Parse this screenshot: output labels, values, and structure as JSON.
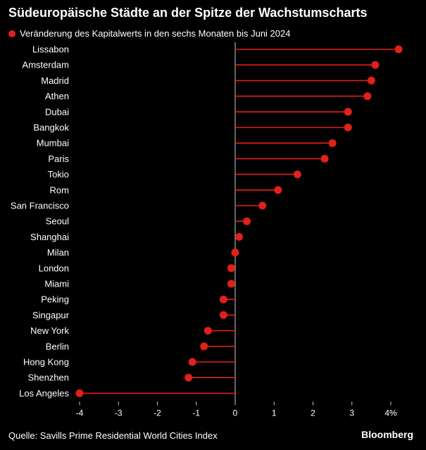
{
  "colors": {
    "background": "#000000",
    "marker": "#e0201b",
    "text": "#ffffff",
    "axis": "#cccccc"
  },
  "header": {
    "title": "Südeuropäische Städte an der Spitze der Wachstumscharts"
  },
  "footer": {
    "source": "Quelle: Savills Prime Residential World Cities Index",
    "brand": "Bloomberg"
  },
  "chart_data": {
    "type": "lollipop",
    "orientation": "horizontal",
    "title": "Südeuropäische Städte an der Spitze der Wachstumscharts",
    "series": [
      {
        "name": "Veränderung des Kapitalwerts in den sechs Monaten bis Juni 2024",
        "color": "#e0201b"
      }
    ],
    "categories": [
      "Lissabon",
      "Amsterdam",
      "Madrid",
      "Athen",
      "Dubai",
      "Bangkok",
      "Mumbai",
      "Paris",
      "Tokio",
      "Rom",
      "San Francisco",
      "Seoul",
      "Shanghai",
      "Milan",
      "London",
      "Miami",
      "Peking",
      "Singapur",
      "New York",
      "Berlin",
      "Hong Kong",
      "Shenzhen",
      "Los Angeles"
    ],
    "values": [
      4.2,
      3.6,
      3.5,
      3.4,
      2.9,
      2.9,
      2.5,
      2.3,
      1.6,
      1.1,
      0.7,
      0.3,
      0.1,
      0.0,
      -0.1,
      -0.1,
      -0.3,
      -0.3,
      -0.7,
      -0.8,
      -1.1,
      -1.2,
      -4.0
    ],
    "xlim": [
      -4,
      4
    ],
    "xticks": [
      -4,
      -3,
      -2,
      -1,
      0,
      1,
      2,
      3,
      4
    ],
    "xtick_labels": [
      "-4",
      "-3",
      "-2",
      "-1",
      "0",
      "1",
      "2",
      "3",
      "4%"
    ],
    "grid": false,
    "legend_position": "top-left",
    "xlabel": "",
    "ylabel": ""
  }
}
